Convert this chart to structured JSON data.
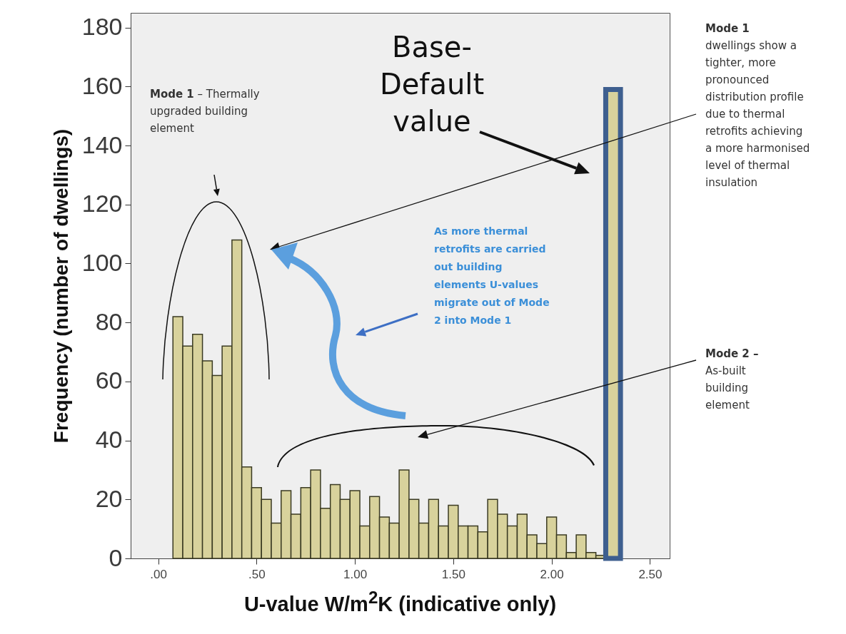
{
  "chart_data": {
    "type": "histogram",
    "xlabel": "U-value W/m$^{2}$K (indicative only)",
    "ylabel": "Frequency (number of dwellings)",
    "bins": [
      0.075,
      0.125,
      0.175,
      0.225,
      0.275,
      0.325,
      0.375,
      0.425,
      0.475,
      0.525,
      0.575,
      0.625,
      0.675,
      0.725,
      0.775,
      0.825,
      0.875,
      0.925,
      0.975,
      1.025,
      1.075,
      1.125,
      1.175,
      1.225,
      1.275,
      1.325,
      1.375,
      1.425,
      1.475,
      1.525,
      1.575,
      1.625,
      1.675,
      1.725,
      1.775,
      1.825,
      1.875,
      1.925,
      1.975,
      2.025,
      2.075,
      2.125,
      2.175,
      2.225,
      2.275,
      2.35
    ],
    "series": [
      {
        "color": "#d8d29c",
        "values": [
          82,
          72,
          76,
          67,
          62,
          72,
          108,
          31,
          24,
          20,
          12,
          23,
          15,
          24,
          30,
          17,
          25,
          20,
          23,
          11,
          21,
          14,
          12,
          30,
          20,
          12,
          20,
          11,
          18,
          11,
          11,
          9,
          20,
          15,
          11,
          15,
          8,
          5,
          14,
          8,
          2,
          8,
          2,
          1,
          null
        ]
      },
      {
        "color": "#3e5f8f",
        "values": [
          null,
          null,
          null,
          null,
          null,
          null,
          null,
          null,
          null,
          null,
          null,
          null,
          null,
          null,
          null,
          null,
          null,
          null,
          null,
          null,
          null,
          null,
          null,
          null,
          null,
          null,
          null,
          null,
          null,
          null,
          null,
          null,
          null,
          null,
          null,
          null,
          null,
          null,
          null,
          null,
          null,
          null,
          null,
          null,
          159
        ]
      }
    ],
    "xlim": [
      -0.14,
      2.6
    ],
    "xticks": [
      {
        "value": 0,
        "label": ".00"
      },
      {
        "value": 0.5,
        "label": ".50"
      },
      {
        "value": 1,
        "label": "1.00"
      },
      {
        "value": 1.5,
        "label": "1.50"
      },
      {
        "value": 2,
        "label": "2.00"
      },
      {
        "value": 2.5,
        "label": "2.50"
      }
    ],
    "ylim": [
      0,
      185
    ],
    "yticks": [
      0,
      20,
      40,
      60,
      80,
      100,
      120,
      140,
      160,
      180
    ],
    "grid": false,
    "annotations": [
      "Base-Default value",
      "Mode 1",
      "– Thermally upgraded building element",
      "Mode 1",
      "dwellings show a tighter, more pronounced distribution profile due to thermal retrofits achieving a more harmonised level of thermal insulation",
      "Mode 2 –",
      "As-built building element",
      "As more thermal retrofits are carried out building elements U-values migrate out of Mode 2 into Mode 1"
    ]
  }
}
